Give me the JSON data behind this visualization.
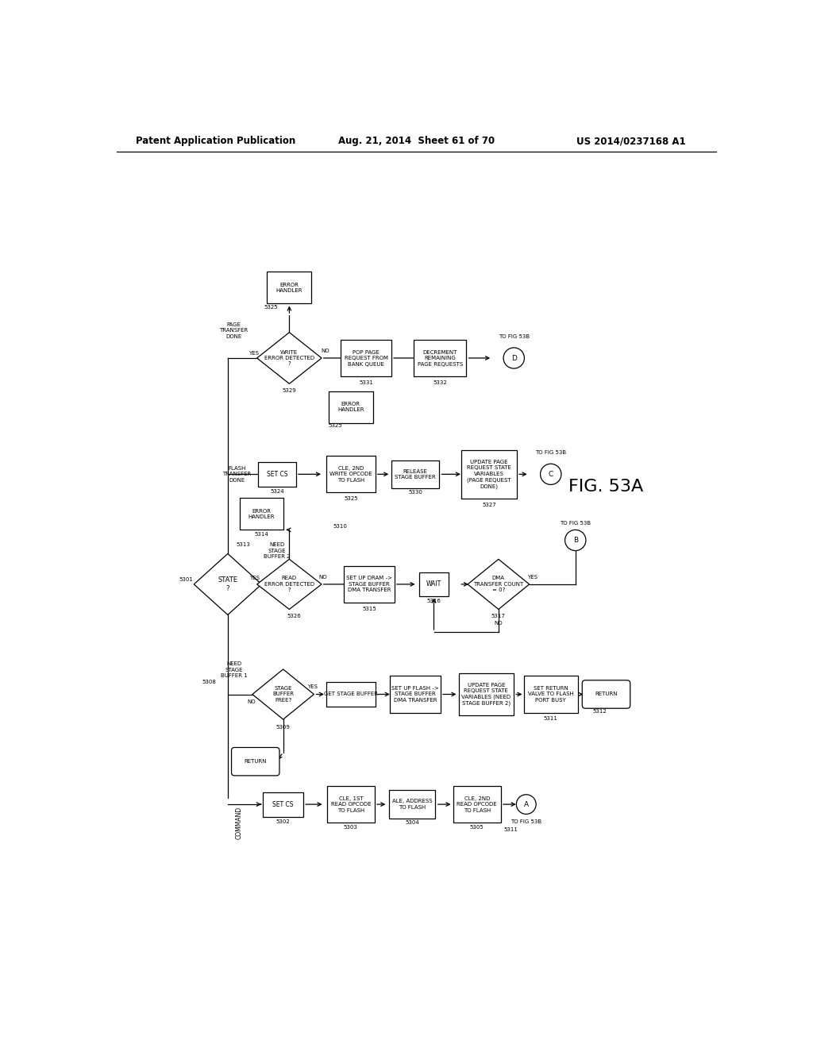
{
  "title": "FIG. 53A",
  "header_left": "Patent Application Publication",
  "header_center": "Aug. 21, 2014  Sheet 61 of 70",
  "header_right": "US 2014/0237168 A1",
  "bg_color": "#ffffff",
  "box_color": "#ffffff",
  "box_edge": "#000000",
  "text_color": "#000000",
  "lw": 0.9,
  "fs": 5.5,
  "nfs": 5.0
}
